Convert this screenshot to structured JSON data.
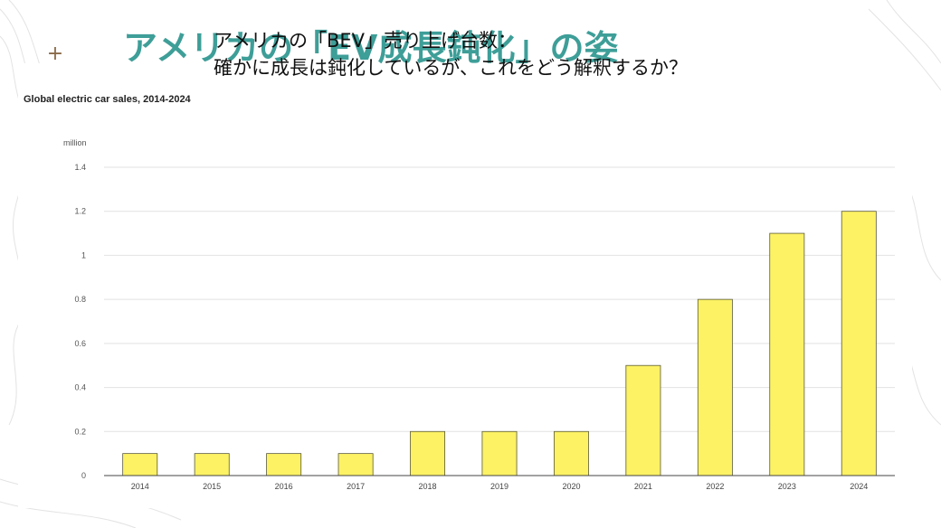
{
  "slide": {
    "title": "アメリカの「EV成長鈍化」の姿",
    "plus_icon": "plus-icon"
  },
  "callout": {
    "line1": "アメリカの「BEV」売り上げ台数：",
    "line2": "確かに成長は鈍化しているが、これをどう解釈するか？"
  },
  "chart_data": {
    "type": "bar",
    "title": "Global electric car sales, 2014-2024",
    "unit": "million",
    "categories": [
      "2014",
      "2015",
      "2016",
      "2017",
      "2018",
      "2019",
      "2020",
      "2021",
      "2022",
      "2023",
      "2024"
    ],
    "values": [
      0.1,
      0.1,
      0.1,
      0.1,
      0.2,
      0.2,
      0.2,
      0.5,
      0.8,
      1.1,
      1.2
    ],
    "ylim": [
      0,
      1.4
    ],
    "yticks": [
      "0",
      "0.2",
      "0.4",
      "0.6",
      "0.8",
      "1",
      "1.2",
      "1.4"
    ],
    "ytick_values": [
      0,
      0.2,
      0.4,
      0.6,
      0.8,
      1.0,
      1.2,
      1.4
    ],
    "grid": true,
    "colors": {
      "bar_fill": "#fdf264",
      "bar_stroke": "#5a5a3a",
      "grid": "#e2e2e2",
      "axis": "#444444"
    }
  }
}
